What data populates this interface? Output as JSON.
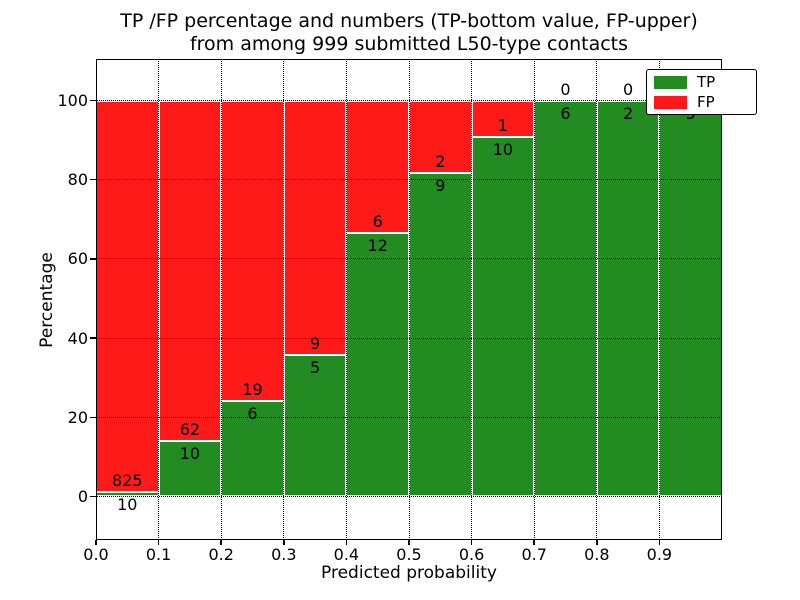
{
  "chart_data": {
    "type": "bar",
    "stacked": true,
    "title_lines": [
      "TP /FP percentage and numbers (TP-bottom value, FP-upper)",
      "from among 999 submitted L50-type contacts"
    ],
    "xlabel": "Predicted probability",
    "ylabel": "Percentage",
    "total_contacts": 999,
    "x_tick_labels": [
      "0.0",
      "0.1",
      "0.2",
      "0.3",
      "0.4",
      "0.5",
      "0.6",
      "0.7",
      "0.8",
      "0.9"
    ],
    "y_tick_values": [
      0,
      20,
      40,
      60,
      80,
      100
    ],
    "xlim": [
      0.0,
      1.0
    ],
    "ylim": [
      -11,
      110.5
    ],
    "bin_width": 0.1,
    "series": [
      {
        "name": "TP",
        "color": "#228B22",
        "counts": [
          10,
          10,
          6,
          5,
          12,
          9,
          10,
          6,
          2,
          5
        ]
      },
      {
        "name": "FP",
        "color": "#ff1a1a",
        "counts": [
          825,
          62,
          19,
          9,
          6,
          2,
          1,
          0,
          0,
          0
        ]
      }
    ],
    "tp_percent": [
      1.2,
      13.9,
      24.0,
      35.7,
      66.7,
      81.8,
      90.9,
      100.0,
      100.0,
      100.0
    ],
    "grid": {
      "style": "dotted",
      "color": "#000000"
    },
    "legend": {
      "position": "upper right",
      "entries": [
        {
          "label": "TP",
          "color": "#228B22"
        },
        {
          "label": "FP",
          "color": "#ff1a1a"
        }
      ]
    }
  }
}
